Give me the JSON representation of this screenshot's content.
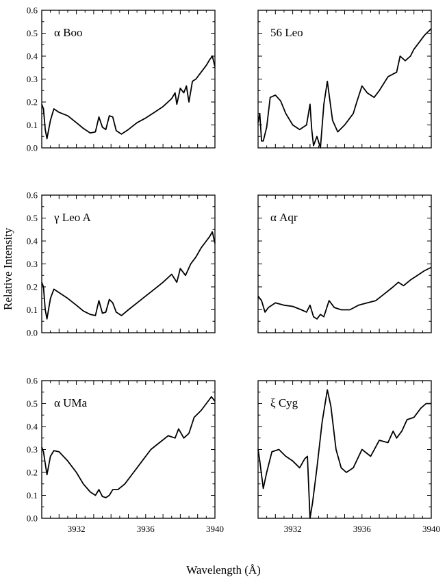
{
  "figure": {
    "ylabel": "Relative Intensity",
    "xlabel": "Wavelength (Å)"
  },
  "chart_data": [
    {
      "type": "line",
      "title": "α Boo",
      "xlim": [
        3930,
        3940
      ],
      "ylim": [
        0,
        0.6
      ],
      "yticks": [
        "0.0",
        "0.1",
        "0.2",
        "0.3",
        "0.4",
        "0.5",
        "0.6"
      ],
      "xticks": [],
      "series": [
        {
          "x": [
            3930.0,
            3930.1,
            3930.2,
            3930.3,
            3930.5,
            3930.7,
            3931.0,
            3931.5,
            3932.0,
            3932.4,
            3932.8,
            3933.1,
            3933.3,
            3933.5,
            3933.7,
            3933.9,
            3934.1,
            3934.3,
            3934.6,
            3935.0,
            3935.5,
            3936.0,
            3936.5,
            3937.0,
            3937.5,
            3937.7,
            3937.8,
            3938.0,
            3938.2,
            3938.35,
            3938.5,
            3938.7,
            3938.9,
            3939.2,
            3939.5,
            3939.7,
            3939.85,
            3940.0
          ],
          "y": [
            0.19,
            0.17,
            0.08,
            0.04,
            0.12,
            0.17,
            0.155,
            0.14,
            0.11,
            0.085,
            0.065,
            0.07,
            0.135,
            0.09,
            0.08,
            0.14,
            0.135,
            0.075,
            0.06,
            0.08,
            0.11,
            0.13,
            0.155,
            0.18,
            0.215,
            0.24,
            0.19,
            0.26,
            0.24,
            0.27,
            0.2,
            0.29,
            0.3,
            0.33,
            0.36,
            0.385,
            0.4,
            0.355
          ]
        }
      ]
    },
    {
      "type": "line",
      "title": "56 Leo",
      "xlim": [
        3930,
        3940
      ],
      "ylim": [
        0,
        0.6
      ],
      "yticks": [],
      "xticks": [],
      "series": [
        {
          "x": [
            3930.0,
            3930.1,
            3930.2,
            3930.3,
            3930.5,
            3930.7,
            3931.0,
            3931.3,
            3931.6,
            3932.0,
            3932.4,
            3932.8,
            3933.0,
            3933.1,
            3933.2,
            3933.4,
            3933.6,
            3933.8,
            3934.0,
            3934.3,
            3934.6,
            3935.0,
            3935.5,
            3935.7,
            3936.0,
            3936.3,
            3936.7,
            3937.0,
            3937.5,
            3938.0,
            3938.2,
            3938.5,
            3938.8,
            3939.0,
            3939.3,
            3939.6,
            3939.8,
            3940.0
          ],
          "y": [
            0.11,
            0.15,
            0.03,
            0.03,
            0.09,
            0.22,
            0.23,
            0.205,
            0.15,
            0.1,
            0.08,
            0.1,
            0.19,
            0.08,
            0.01,
            0.05,
            0.0,
            0.19,
            0.29,
            0.12,
            0.07,
            0.1,
            0.15,
            0.2,
            0.27,
            0.24,
            0.22,
            0.25,
            0.31,
            0.33,
            0.4,
            0.38,
            0.4,
            0.43,
            0.46,
            0.49,
            0.505,
            0.52
          ]
        }
      ]
    },
    {
      "type": "line",
      "title": "γ Leo A",
      "xlim": [
        3930,
        3940
      ],
      "ylim": [
        0,
        0.6
      ],
      "yticks": [
        "0.0",
        "0.1",
        "0.2",
        "0.3",
        "0.4",
        "0.5",
        "0.6"
      ],
      "xticks": [],
      "series": [
        {
          "x": [
            3930.0,
            3930.1,
            3930.2,
            3930.3,
            3930.5,
            3930.7,
            3931.0,
            3931.5,
            3932.0,
            3932.4,
            3932.8,
            3933.1,
            3933.3,
            3933.5,
            3933.7,
            3933.9,
            3934.1,
            3934.3,
            3934.6,
            3935.0,
            3935.5,
            3936.0,
            3936.5,
            3937.0,
            3937.5,
            3937.8,
            3938.0,
            3938.3,
            3938.6,
            3938.9,
            3939.2,
            3939.5,
            3939.7,
            3939.85,
            3940.0
          ],
          "y": [
            0.22,
            0.2,
            0.1,
            0.06,
            0.15,
            0.19,
            0.175,
            0.15,
            0.12,
            0.095,
            0.08,
            0.075,
            0.14,
            0.085,
            0.09,
            0.145,
            0.13,
            0.09,
            0.075,
            0.1,
            0.13,
            0.16,
            0.19,
            0.22,
            0.255,
            0.22,
            0.28,
            0.25,
            0.3,
            0.33,
            0.37,
            0.4,
            0.42,
            0.44,
            0.39
          ]
        }
      ]
    },
    {
      "type": "line",
      "title": "α Aqr",
      "xlim": [
        3930,
        3940
      ],
      "ylim": [
        0,
        0.6
      ],
      "yticks": [],
      "xticks": [],
      "series": [
        {
          "x": [
            3930.0,
            3930.2,
            3930.4,
            3930.6,
            3931.0,
            3931.5,
            3932.0,
            3932.5,
            3932.8,
            3933.0,
            3933.2,
            3933.4,
            3933.6,
            3933.8,
            3934.1,
            3934.4,
            3934.8,
            3935.3,
            3935.8,
            3936.3,
            3936.8,
            3937.3,
            3937.8,
            3938.1,
            3938.4,
            3938.8,
            3939.2,
            3939.6,
            3940.0
          ],
          "y": [
            0.16,
            0.14,
            0.09,
            0.11,
            0.13,
            0.12,
            0.115,
            0.1,
            0.09,
            0.12,
            0.07,
            0.06,
            0.08,
            0.07,
            0.14,
            0.11,
            0.1,
            0.1,
            0.12,
            0.13,
            0.14,
            0.17,
            0.2,
            0.22,
            0.205,
            0.23,
            0.25,
            0.27,
            0.285
          ]
        }
      ]
    },
    {
      "type": "line",
      "title": "α UMa",
      "xlim": [
        3930,
        3940
      ],
      "ylim": [
        0,
        0.6
      ],
      "yticks": [
        "0.0",
        "0.1",
        "0.2",
        "0.3",
        "0.4",
        "0.5",
        "0.6"
      ],
      "xticks": [
        "3932",
        "3936",
        "3940"
      ],
      "series": [
        {
          "x": [
            3930.0,
            3930.1,
            3930.3,
            3930.5,
            3930.7,
            3931.0,
            3931.5,
            3932.0,
            3932.4,
            3932.8,
            3933.1,
            3933.3,
            3933.5,
            3933.7,
            3933.9,
            3934.1,
            3934.4,
            3934.8,
            3935.3,
            3935.8,
            3936.3,
            3936.8,
            3937.3,
            3937.7,
            3937.9,
            3938.2,
            3938.5,
            3938.8,
            3939.2,
            3939.5,
            3939.8,
            3940.0
          ],
          "y": [
            0.31,
            0.29,
            0.19,
            0.27,
            0.295,
            0.29,
            0.25,
            0.2,
            0.15,
            0.115,
            0.1,
            0.125,
            0.095,
            0.09,
            0.1,
            0.125,
            0.125,
            0.15,
            0.2,
            0.25,
            0.3,
            0.33,
            0.36,
            0.35,
            0.39,
            0.35,
            0.37,
            0.44,
            0.47,
            0.5,
            0.53,
            0.51
          ]
        }
      ]
    },
    {
      "type": "line",
      "title": "ξ Cyg",
      "xlim": [
        3930,
        3940
      ],
      "ylim": [
        0,
        0.6
      ],
      "yticks": [],
      "xticks": [
        "3932",
        "3936",
        "3940"
      ],
      "series": [
        {
          "x": [
            3930.0,
            3930.1,
            3930.3,
            3930.5,
            3930.8,
            3931.2,
            3931.6,
            3932.0,
            3932.4,
            3932.7,
            3932.85,
            3933.0,
            3933.15,
            3933.4,
            3933.7,
            3934.0,
            3934.2,
            3934.5,
            3934.8,
            3935.1,
            3935.5,
            3936.0,
            3936.5,
            3937.0,
            3937.5,
            3937.8,
            3938.0,
            3938.3,
            3938.6,
            3939.0,
            3939.4,
            3939.7,
            3940.0
          ],
          "y": [
            0.3,
            0.25,
            0.13,
            0.2,
            0.29,
            0.3,
            0.27,
            0.25,
            0.22,
            0.26,
            0.27,
            0.0,
            0.07,
            0.22,
            0.42,
            0.56,
            0.49,
            0.3,
            0.22,
            0.2,
            0.22,
            0.3,
            0.27,
            0.34,
            0.33,
            0.38,
            0.35,
            0.38,
            0.43,
            0.44,
            0.48,
            0.5,
            0.5
          ]
        }
      ]
    }
  ]
}
